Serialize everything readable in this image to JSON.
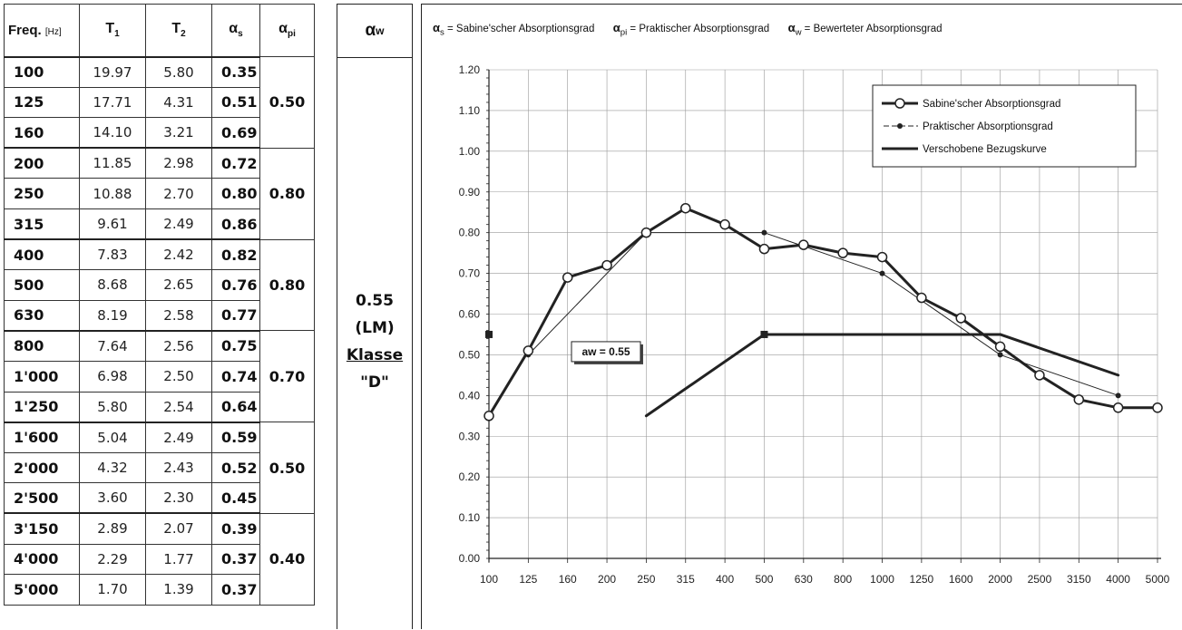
{
  "table": {
    "headers": {
      "freq": "Freq.",
      "freq_unit": "[Hz]",
      "t1": "T",
      "t1_sub": "1",
      "t2": "T",
      "t2_sub": "2",
      "as": "α",
      "as_sub": "s",
      "api": "α",
      "api_sub": "pi"
    },
    "rows": [
      {
        "freq": "100",
        "t1": "19.97",
        "t2": "5.80",
        "as": "0.35"
      },
      {
        "freq": "125",
        "t1": "17.71",
        "t2": "4.31",
        "as": "0.51"
      },
      {
        "freq": "160",
        "t1": "14.10",
        "t2": "3.21",
        "as": "0.69"
      },
      {
        "freq": "200",
        "t1": "11.85",
        "t2": "2.98",
        "as": "0.72"
      },
      {
        "freq": "250",
        "t1": "10.88",
        "t2": "2.70",
        "as": "0.80"
      },
      {
        "freq": "315",
        "t1": "9.61",
        "t2": "2.49",
        "as": "0.86"
      },
      {
        "freq": "400",
        "t1": "7.83",
        "t2": "2.42",
        "as": "0.82"
      },
      {
        "freq": "500",
        "t1": "8.68",
        "t2": "2.65",
        "as": "0.76"
      },
      {
        "freq": "630",
        "t1": "8.19",
        "t2": "2.58",
        "as": "0.77"
      },
      {
        "freq": "800",
        "t1": "7.64",
        "t2": "2.56",
        "as": "0.75"
      },
      {
        "freq": "1'000",
        "t1": "6.98",
        "t2": "2.50",
        "as": "0.74"
      },
      {
        "freq": "1'250",
        "t1": "5.80",
        "t2": "2.54",
        "as": "0.64"
      },
      {
        "freq": "1'600",
        "t1": "5.04",
        "t2": "2.49",
        "as": "0.59"
      },
      {
        "freq": "2'000",
        "t1": "4.32",
        "t2": "2.43",
        "as": "0.52"
      },
      {
        "freq": "2'500",
        "t1": "3.60",
        "t2": "2.30",
        "as": "0.45"
      },
      {
        "freq": "3'150",
        "t1": "2.89",
        "t2": "2.07",
        "as": "0.39"
      },
      {
        "freq": "4'000",
        "t1": "2.29",
        "t2": "1.77",
        "as": "0.37"
      },
      {
        "freq": "5'000",
        "t1": "1.70",
        "t2": "1.39",
        "as": "0.37"
      }
    ],
    "api_values": [
      "0.50",
      "0.80",
      "0.80",
      "0.70",
      "0.50",
      "0.40"
    ]
  },
  "rating": {
    "header": "α",
    "header_sub": "w",
    "value": "0.55",
    "shape_indicator": "(LM)",
    "klasse_label": "Klasse",
    "klasse_value": "\"D\""
  },
  "chart_legend_top": {
    "as_sym": "α",
    "as_sub": "s",
    "as_text": " = Sabine'scher Absorptionsgrad",
    "api_sym": "α",
    "api_sub": "pi",
    "api_text": " = Praktischer Absorptionsgrad",
    "aw_sym": "α",
    "aw_sub": "w",
    "aw_text": " = Bewerteter Absorptionsgrad"
  },
  "chart_data": {
    "type": "line",
    "title": "",
    "xlabel": "",
    "ylabel": "",
    "categories": [
      "100",
      "125",
      "160",
      "200",
      "250",
      "315",
      "400",
      "500",
      "630",
      "800",
      "1000",
      "1250",
      "1600",
      "2000",
      "2500",
      "3150",
      "4000",
      "5000"
    ],
    "yticks": [
      "0.00",
      "0.10",
      "0.20",
      "0.30",
      "0.40",
      "0.50",
      "0.60",
      "0.70",
      "0.80",
      "0.90",
      "1.00",
      "1.10",
      "1.20"
    ],
    "ylim": [
      0,
      1.2
    ],
    "grid": true,
    "legend_position": "top-right",
    "series": [
      {
        "name": "Sabine'scher Absorptionsgrad",
        "style": "thick-open-circle",
        "values": [
          0.35,
          0.51,
          0.69,
          0.72,
          0.8,
          0.86,
          0.82,
          0.76,
          0.77,
          0.75,
          0.74,
          0.64,
          0.59,
          0.52,
          0.45,
          0.39,
          0.37,
          0.37
        ]
      },
      {
        "name": "Praktischer Absorptionsgrad",
        "style": "thin-dash-dot",
        "points": [
          [
            "125",
            0.5
          ],
          [
            "250",
            0.8
          ],
          [
            "500",
            0.8
          ],
          [
            "1000",
            0.7
          ],
          [
            "2000",
            0.5
          ],
          [
            "4000",
            0.4
          ]
        ]
      },
      {
        "name": "Verschobene Bezugskurve",
        "style": "thick-line",
        "points": [
          [
            "250",
            0.35
          ],
          [
            "500",
            0.55
          ],
          [
            "1000",
            0.55
          ],
          [
            "2000",
            0.55
          ],
          [
            "4000",
            0.45
          ]
        ]
      }
    ],
    "aw_marker": 0.55,
    "annotation": "aw = 0.55"
  },
  "colors": {
    "line": "#222222",
    "grid": "#999999"
  }
}
